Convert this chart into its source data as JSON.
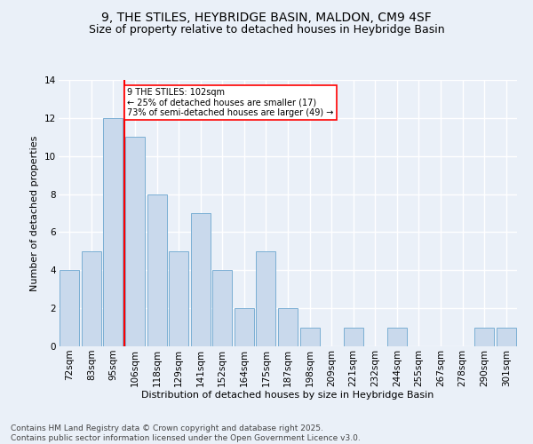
{
  "title1": "9, THE STILES, HEYBRIDGE BASIN, MALDON, CM9 4SF",
  "title2": "Size of property relative to detached houses in Heybridge Basin",
  "xlabel": "Distribution of detached houses by size in Heybridge Basin",
  "ylabel": "Number of detached properties",
  "categories": [
    "72sqm",
    "83sqm",
    "95sqm",
    "106sqm",
    "118sqm",
    "129sqm",
    "141sqm",
    "152sqm",
    "164sqm",
    "175sqm",
    "187sqm",
    "198sqm",
    "209sqm",
    "221sqm",
    "232sqm",
    "244sqm",
    "255sqm",
    "267sqm",
    "278sqm",
    "290sqm",
    "301sqm"
  ],
  "values": [
    4,
    5,
    12,
    11,
    8,
    5,
    7,
    4,
    2,
    5,
    2,
    1,
    0,
    1,
    0,
    1,
    0,
    0,
    0,
    1,
    1
  ],
  "bar_color": "#c9d9ec",
  "bar_edge_color": "#7bafd4",
  "highlight_line_color": "red",
  "annotation_text": "9 THE STILES: 102sqm\n← 25% of detached houses are smaller (17)\n73% of semi-detached houses are larger (49) →",
  "annotation_box_color": "white",
  "annotation_box_edge_color": "red",
  "ylim": [
    0,
    14
  ],
  "yticks": [
    0,
    2,
    4,
    6,
    8,
    10,
    12,
    14
  ],
  "background_color": "#eaf0f8",
  "grid_color": "white",
  "footer": "Contains HM Land Registry data © Crown copyright and database right 2025.\nContains public sector information licensed under the Open Government Licence v3.0.",
  "title_fontsize": 10,
  "subtitle_fontsize": 9,
  "axis_label_fontsize": 8,
  "tick_fontsize": 7.5,
  "footer_fontsize": 6.5,
  "annotation_fontsize": 7
}
